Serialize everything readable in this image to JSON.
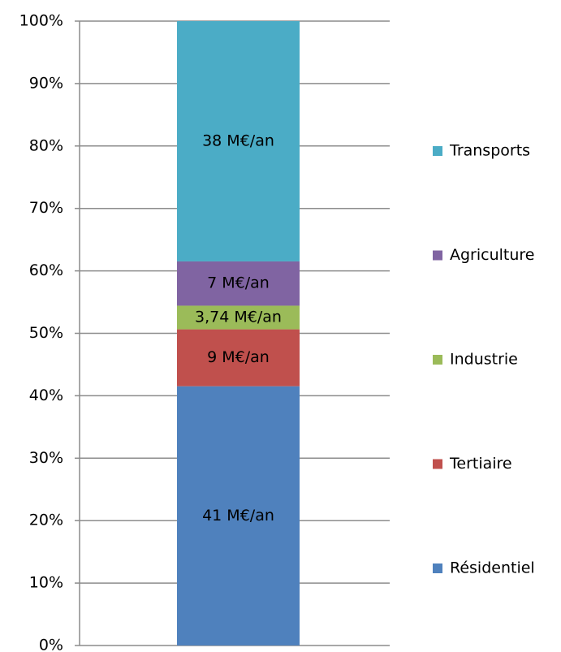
{
  "chart_data": {
    "type": "stacked100",
    "series": [
      {
        "name": "Résidentiel",
        "color": "#4f81bd",
        "values": [
          41
        ],
        "value_labels": [
          "41 M€/an"
        ]
      },
      {
        "name": "Tertiaire",
        "color": "#c0504d",
        "values": [
          9
        ],
        "value_labels": [
          "9 M€/an"
        ]
      },
      {
        "name": "Industrie",
        "color": "#9bbb59",
        "values": [
          3.74
        ],
        "value_labels": [
          "3,74 M€/an"
        ]
      },
      {
        "name": "Agriculture",
        "color": "#8064a2",
        "values": [
          7
        ],
        "value_labels": [
          "7 M€/an"
        ]
      },
      {
        "name": "Transports",
        "color": "#4bacc6",
        "values": [
          38
        ],
        "value_labels": [
          "38 M€/an"
        ]
      }
    ],
    "ylim": [
      0,
      100
    ],
    "yticks": [
      {
        "value": 0,
        "label": "0%"
      },
      {
        "value": 10,
        "label": "10%"
      },
      {
        "value": 20,
        "label": "20%"
      },
      {
        "value": 30,
        "label": "30%"
      },
      {
        "value": 40,
        "label": "40%"
      },
      {
        "value": 50,
        "label": "50%"
      },
      {
        "value": 60,
        "label": "60%"
      },
      {
        "value": 70,
        "label": "70%"
      },
      {
        "value": 80,
        "label": "80%"
      },
      {
        "value": 90,
        "label": "90%"
      },
      {
        "value": 100,
        "label": "100%"
      }
    ],
    "grid": true,
    "legend": "right"
  }
}
